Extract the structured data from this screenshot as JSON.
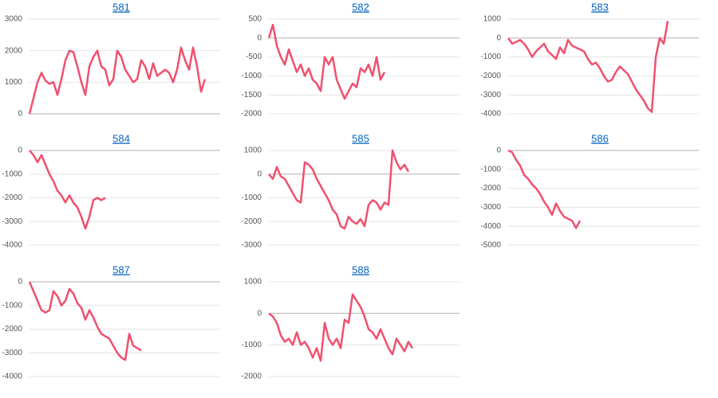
{
  "chart_data": [
    {
      "type": "line",
      "title": "581",
      "color": "#f0506e",
      "grid": true,
      "ylim": [
        0,
        3000
      ],
      "yticks": [
        0,
        1000,
        2000,
        3000
      ],
      "values": [
        0,
        500,
        1000,
        1300,
        1050,
        950,
        1000,
        600,
        1100,
        1700,
        2000,
        1950,
        1500,
        1000,
        600,
        1500,
        1800,
        2000,
        1500,
        1400,
        900,
        1100,
        2000,
        1800,
        1400,
        1200,
        1000,
        1100,
        1700,
        1500,
        1100,
        1600,
        1200,
        1300,
        1400,
        1300,
        1000,
        1400,
        2100,
        1700,
        1400,
        2100,
        1500,
        700,
        1100
      ]
    },
    {
      "type": "line",
      "title": "582",
      "color": "#f0506e",
      "grid": true,
      "ylim": [
        -2000,
        500
      ],
      "yticks": [
        -2000,
        -1500,
        -1000,
        -500,
        0,
        500
      ],
      "values": [
        0,
        350,
        -200,
        -500,
        -700,
        -300,
        -600,
        -900,
        -700,
        -1000,
        -800,
        -1100,
        -1200,
        -1400,
        -500,
        -700,
        -500,
        -1100,
        -1350,
        -1600,
        -1400,
        -1200,
        -1300,
        -800,
        -900,
        -700,
        -1000,
        -500,
        -1100,
        -900
      ]
    },
    {
      "type": "line",
      "title": "583",
      "color": "#f0506e",
      "grid": true,
      "ylim": [
        -4000,
        1000
      ],
      "yticks": [
        -4000,
        -3000,
        -2000,
        -1000,
        0,
        1000
      ],
      "values": [
        0,
        -300,
        -200,
        -100,
        -300,
        -600,
        -1000,
        -700,
        -500,
        -300,
        -700,
        -900,
        -1100,
        -500,
        -800,
        -100,
        -400,
        -500,
        -600,
        -700,
        -1100,
        -1400,
        -1300,
        -1600,
        -2000,
        -2300,
        -2200,
        -1800,
        -1500,
        -1700,
        -1900,
        -2300,
        -2700,
        -3000,
        -3300,
        -3700,
        -3900,
        -1000,
        0,
        -300,
        900
      ]
    },
    {
      "type": "line",
      "title": "584",
      "color": "#f0506e",
      "grid": true,
      "ylim": [
        -4000,
        0
      ],
      "yticks": [
        -4000,
        -3000,
        -2000,
        -1000,
        0
      ],
      "values": [
        0,
        -200,
        -500,
        -200,
        -600,
        -1000,
        -1300,
        -1700,
        -1900,
        -2200,
        -1900,
        -2200,
        -2400,
        -2800,
        -3300,
        -2800,
        -2100,
        -2000,
        -2100,
        -2000
      ]
    },
    {
      "type": "line",
      "title": "585",
      "color": "#f0506e",
      "grid": true,
      "ylim": [
        -3000,
        1000
      ],
      "yticks": [
        -3000,
        -2000,
        -1000,
        0,
        1000
      ],
      "values": [
        0,
        -200,
        300,
        -100,
        -200,
        -500,
        -800,
        -1100,
        -1200,
        500,
        400,
        200,
        -200,
        -500,
        -800,
        -1100,
        -1500,
        -1700,
        -2200,
        -2300,
        -1800,
        -2000,
        -2100,
        -1900,
        -2200,
        -1300,
        -1100,
        -1200,
        -1500,
        -1200,
        -1300,
        1000,
        500,
        200,
        400,
        100
      ]
    },
    {
      "type": "line",
      "title": "586",
      "color": "#f0506e",
      "grid": true,
      "ylim": [
        -5000,
        0
      ],
      "yticks": [
        -5000,
        -4000,
        -3000,
        -2000,
        -1000,
        0
      ],
      "values": [
        0,
        -100,
        -500,
        -800,
        -1300,
        -1500,
        -1800,
        -2000,
        -2300,
        -2700,
        -3000,
        -3400,
        -2800,
        -3200,
        -3500,
        -3600,
        -3700,
        -4100,
        -3700
      ]
    },
    {
      "type": "line",
      "title": "587",
      "color": "#f0506e",
      "grid": true,
      "ylim": [
        -4000,
        0
      ],
      "yticks": [
        -4000,
        -3000,
        -2000,
        -1000,
        0
      ],
      "values": [
        0,
        -400,
        -800,
        -1200,
        -1300,
        -1200,
        -400,
        -600,
        -1000,
        -800,
        -300,
        -500,
        -900,
        -1100,
        -1600,
        -1200,
        -1500,
        -1900,
        -2200,
        -2300,
        -2400,
        -2700,
        -3000,
        -3200,
        -3300,
        -2200,
        -2700,
        -2800,
        -2900
      ]
    },
    {
      "type": "line",
      "title": "588",
      "color": "#f0506e",
      "grid": true,
      "ylim": [
        -2000,
        1000
      ],
      "yticks": [
        -2000,
        -1000,
        0,
        1000
      ],
      "values": [
        0,
        -100,
        -300,
        -700,
        -900,
        -800,
        -1000,
        -600,
        -1000,
        -900,
        -1100,
        -1400,
        -1100,
        -1500,
        -300,
        -800,
        -1000,
        -800,
        -1100,
        -200,
        -300,
        600,
        400,
        200,
        -100,
        -500,
        -600,
        -800,
        -500,
        -800,
        -1100,
        -1300,
        -800,
        -1000,
        -1200,
        -900,
        -1100
      ]
    }
  ]
}
